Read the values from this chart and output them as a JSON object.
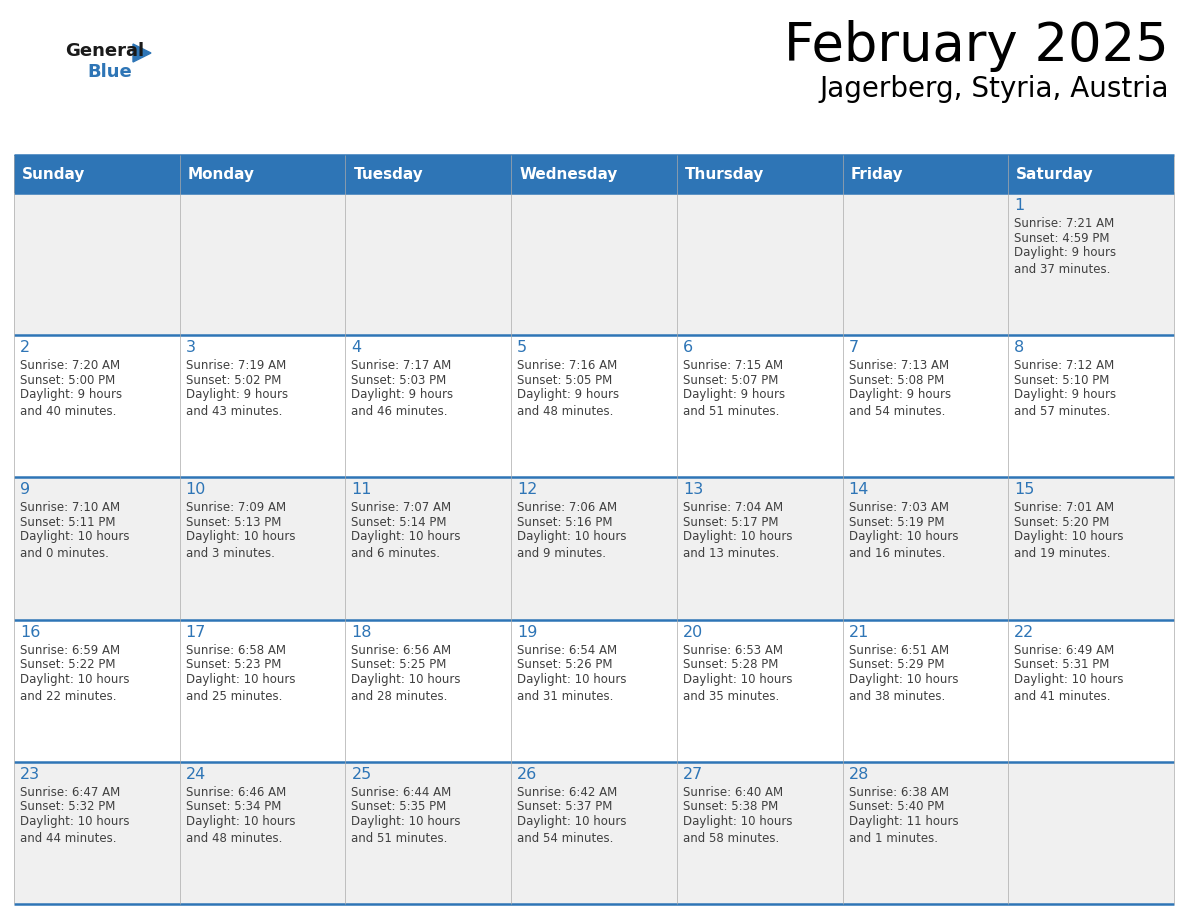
{
  "title": "February 2025",
  "subtitle": "Jagerberg, Styria, Austria",
  "header_bg_color": "#2e75b6",
  "header_text_color": "#ffffff",
  "border_color": "#2e75b6",
  "title_color": "#000000",
  "subtitle_color": "#000000",
  "day_number_color": "#2e75b6",
  "cell_text_color": "#404040",
  "row0_bg": "#f0f0f0",
  "row1_bg": "#ffffff",
  "days_of_week": [
    "Sunday",
    "Monday",
    "Tuesday",
    "Wednesday",
    "Thursday",
    "Friday",
    "Saturday"
  ],
  "calendar_data": [
    [
      null,
      null,
      null,
      null,
      null,
      null,
      {
        "day": 1,
        "sunrise": "7:21 AM",
        "sunset": "4:59 PM",
        "daylight_hours": 9,
        "daylight_minutes": 37
      }
    ],
    [
      {
        "day": 2,
        "sunrise": "7:20 AM",
        "sunset": "5:00 PM",
        "daylight_hours": 9,
        "daylight_minutes": 40
      },
      {
        "day": 3,
        "sunrise": "7:19 AM",
        "sunset": "5:02 PM",
        "daylight_hours": 9,
        "daylight_minutes": 43
      },
      {
        "day": 4,
        "sunrise": "7:17 AM",
        "sunset": "5:03 PM",
        "daylight_hours": 9,
        "daylight_minutes": 46
      },
      {
        "day": 5,
        "sunrise": "7:16 AM",
        "sunset": "5:05 PM",
        "daylight_hours": 9,
        "daylight_minutes": 48
      },
      {
        "day": 6,
        "sunrise": "7:15 AM",
        "sunset": "5:07 PM",
        "daylight_hours": 9,
        "daylight_minutes": 51
      },
      {
        "day": 7,
        "sunrise": "7:13 AM",
        "sunset": "5:08 PM",
        "daylight_hours": 9,
        "daylight_minutes": 54
      },
      {
        "day": 8,
        "sunrise": "7:12 AM",
        "sunset": "5:10 PM",
        "daylight_hours": 9,
        "daylight_minutes": 57
      }
    ],
    [
      {
        "day": 9,
        "sunrise": "7:10 AM",
        "sunset": "5:11 PM",
        "daylight_hours": 10,
        "daylight_minutes": 0
      },
      {
        "day": 10,
        "sunrise": "7:09 AM",
        "sunset": "5:13 PM",
        "daylight_hours": 10,
        "daylight_minutes": 3
      },
      {
        "day": 11,
        "sunrise": "7:07 AM",
        "sunset": "5:14 PM",
        "daylight_hours": 10,
        "daylight_minutes": 6
      },
      {
        "day": 12,
        "sunrise": "7:06 AM",
        "sunset": "5:16 PM",
        "daylight_hours": 10,
        "daylight_minutes": 9
      },
      {
        "day": 13,
        "sunrise": "7:04 AM",
        "sunset": "5:17 PM",
        "daylight_hours": 10,
        "daylight_minutes": 13
      },
      {
        "day": 14,
        "sunrise": "7:03 AM",
        "sunset": "5:19 PM",
        "daylight_hours": 10,
        "daylight_minutes": 16
      },
      {
        "day": 15,
        "sunrise": "7:01 AM",
        "sunset": "5:20 PM",
        "daylight_hours": 10,
        "daylight_minutes": 19
      }
    ],
    [
      {
        "day": 16,
        "sunrise": "6:59 AM",
        "sunset": "5:22 PM",
        "daylight_hours": 10,
        "daylight_minutes": 22
      },
      {
        "day": 17,
        "sunrise": "6:58 AM",
        "sunset": "5:23 PM",
        "daylight_hours": 10,
        "daylight_minutes": 25
      },
      {
        "day": 18,
        "sunrise": "6:56 AM",
        "sunset": "5:25 PM",
        "daylight_hours": 10,
        "daylight_minutes": 28
      },
      {
        "day": 19,
        "sunrise": "6:54 AM",
        "sunset": "5:26 PM",
        "daylight_hours": 10,
        "daylight_minutes": 31
      },
      {
        "day": 20,
        "sunrise": "6:53 AM",
        "sunset": "5:28 PM",
        "daylight_hours": 10,
        "daylight_minutes": 35
      },
      {
        "day": 21,
        "sunrise": "6:51 AM",
        "sunset": "5:29 PM",
        "daylight_hours": 10,
        "daylight_minutes": 38
      },
      {
        "day": 22,
        "sunrise": "6:49 AM",
        "sunset": "5:31 PM",
        "daylight_hours": 10,
        "daylight_minutes": 41
      }
    ],
    [
      {
        "day": 23,
        "sunrise": "6:47 AM",
        "sunset": "5:32 PM",
        "daylight_hours": 10,
        "daylight_minutes": 44
      },
      {
        "day": 24,
        "sunrise": "6:46 AM",
        "sunset": "5:34 PM",
        "daylight_hours": 10,
        "daylight_minutes": 48
      },
      {
        "day": 25,
        "sunrise": "6:44 AM",
        "sunset": "5:35 PM",
        "daylight_hours": 10,
        "daylight_minutes": 51
      },
      {
        "day": 26,
        "sunrise": "6:42 AM",
        "sunset": "5:37 PM",
        "daylight_hours": 10,
        "daylight_minutes": 54
      },
      {
        "day": 27,
        "sunrise": "6:40 AM",
        "sunset": "5:38 PM",
        "daylight_hours": 10,
        "daylight_minutes": 58
      },
      {
        "day": 28,
        "sunrise": "6:38 AM",
        "sunset": "5:40 PM",
        "daylight_hours": 11,
        "daylight_minutes": 1
      },
      null
    ]
  ]
}
